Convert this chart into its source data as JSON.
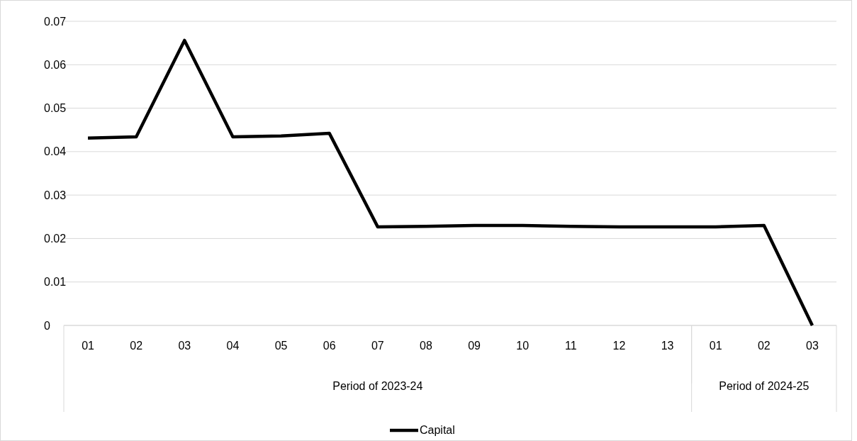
{
  "chart_data": {
    "type": "line",
    "categories": [
      "01",
      "02",
      "03",
      "04",
      "05",
      "06",
      "07",
      "08",
      "09",
      "10",
      "11",
      "12",
      "13",
      "01",
      "02",
      "03"
    ],
    "series": [
      {
        "name": "Capital",
        "color": "#000000",
        "values": [
          0.0431,
          0.0434,
          0.0656,
          0.0434,
          0.0436,
          0.0442,
          0.0227,
          0.0228,
          0.023,
          0.023,
          0.0228,
          0.0227,
          0.0227,
          0.0227,
          0.023,
          0
        ]
      }
    ],
    "annotations": [
      "Period of 2023-24",
      "Period of 2024-25"
    ],
    "ylim": [
      0,
      0.07
    ],
    "yticks": [
      0,
      0.01,
      0.02,
      0.03,
      0.04,
      0.05,
      0.06,
      0.07
    ],
    "grid": "y",
    "legend": "bottom",
    "marker": "none",
    "line_style": "solid"
  }
}
